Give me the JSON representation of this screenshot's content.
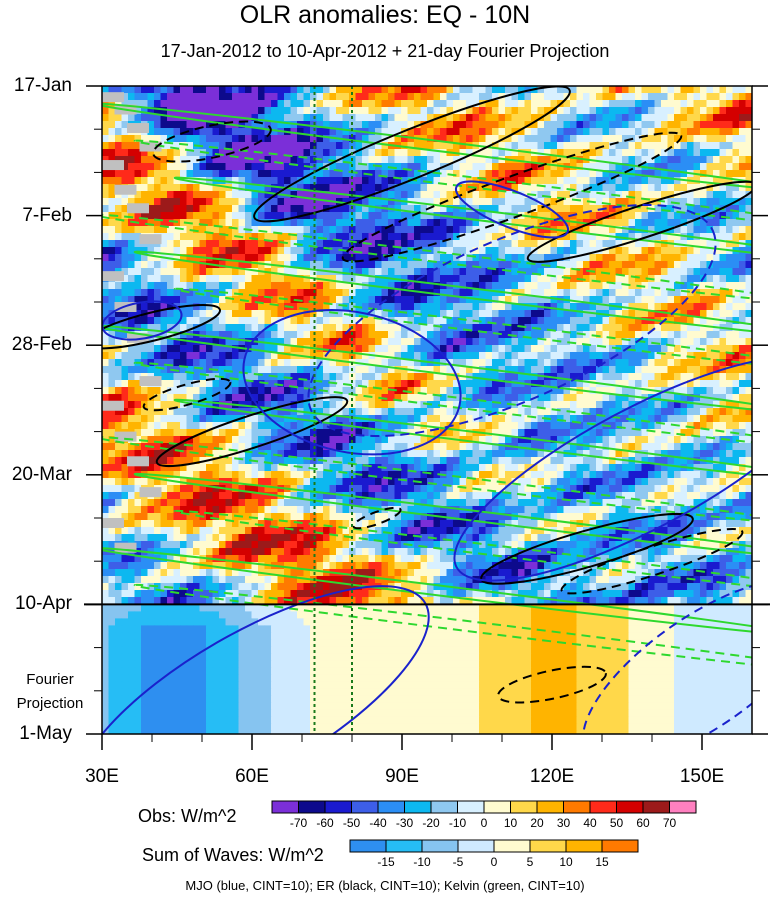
{
  "chart_data": {
    "type": "heatmap",
    "title": "OLR anomalies: EQ - 10N",
    "subtitle": "17-Jan-2012 to 10-Apr-2012 + 21-day Fourier Projection",
    "xlabel": "",
    "ylabel": "",
    "x_ticks": [
      "30E",
      "60E",
      "90E",
      "120E",
      "150E"
    ],
    "x_tick_values": [
      30,
      60,
      90,
      120,
      150
    ],
    "xlim": [
      30,
      160
    ],
    "y_ticks": [
      "17-Jan",
      "7-Feb",
      "28-Feb",
      "20-Mar",
      "10-Apr",
      "1-May"
    ],
    "y_tick_days": [
      0,
      21,
      42,
      63,
      84,
      105
    ],
    "ylim_days": [
      0,
      105
    ],
    "projection_label": "Fourier\nProjection",
    "obs_end_day": 84,
    "reference_lines_lon": [
      72.5,
      80
    ],
    "obs_colorbar": {
      "title": "Obs: W/m^2",
      "labels": [
        "-70",
        "-60",
        "-50",
        "-40",
        "-30",
        "-20",
        "-10",
        "0",
        "10",
        "20",
        "30",
        "40",
        "50",
        "60",
        "70"
      ],
      "colors": [
        "#7b2fd8",
        "#0d0a8c",
        "#1a1acf",
        "#3d5ee8",
        "#2b8ef5",
        "#0cb8f0",
        "#8fc8f0",
        "#d8f0ff",
        "#fffbd0",
        "#ffd84a",
        "#ffb400",
        "#ff7a00",
        "#ff2a1a",
        "#d40000",
        "#9c1a1a",
        "#ff80c0"
      ]
    },
    "wave_colorbar": {
      "title": "Sum of Waves: W/m^2",
      "labels": [
        "-15",
        "-10",
        "-5",
        "0",
        "5",
        "10",
        "15"
      ],
      "colors": [
        "#2e8ff0",
        "#26bdf5",
        "#86c4f0",
        "#cfeaff",
        "#fffbd0",
        "#ffd84a",
        "#ffb400",
        "#ff7a00"
      ]
    },
    "contour_legend": "MJO (blue, CINT=10); ER (black, CINT=10); Kelvin (green, CINT=10)",
    "colors": {
      "mjo": "#1a22cc",
      "er": "#000000",
      "kelvin": "#2ed82e",
      "reference": "#1a7a1a",
      "missing": "#c0c0c0"
    },
    "missing_data_lon": 30
  }
}
